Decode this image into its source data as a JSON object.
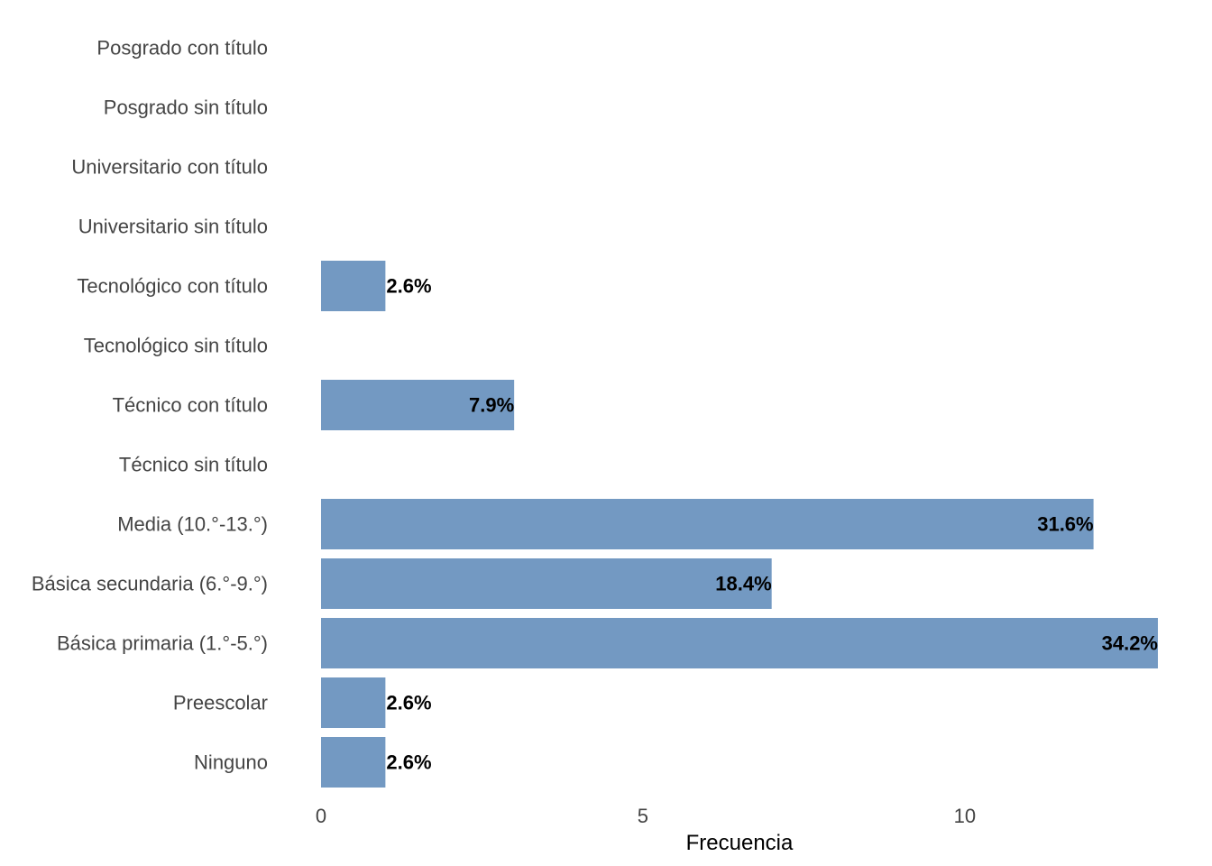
{
  "chart_data": {
    "type": "bar",
    "orientation": "horizontal",
    "categories": [
      "Ninguno",
      "Preescolar",
      "Básica primaria (1.°-5.°)",
      "Básica secundaria (6.°-9.°)",
      "Media (10.°-13.°)",
      "Técnico sin título",
      "Técnico con título",
      "Tecnológico sin título",
      "Tecnológico con título",
      "Universitario sin título",
      "Universitario con título",
      "Posgrado sin título",
      "Posgrado con título"
    ],
    "values": [
      1,
      1,
      13,
      7,
      12,
      0,
      3,
      0,
      1,
      0,
      0,
      0,
      0
    ],
    "labels": [
      "2.6%",
      "2.6%",
      "34.2%",
      "18.4%",
      "31.6%",
      "",
      "7.9%",
      "",
      "2.6%",
      "",
      "",
      "",
      ""
    ],
    "xlabel": "Frecuencia",
    "ylabel": "",
    "xlim": [
      0,
      13
    ],
    "xticks": [
      0,
      5,
      10
    ],
    "grid": false,
    "bar_color": "#7399c2"
  }
}
